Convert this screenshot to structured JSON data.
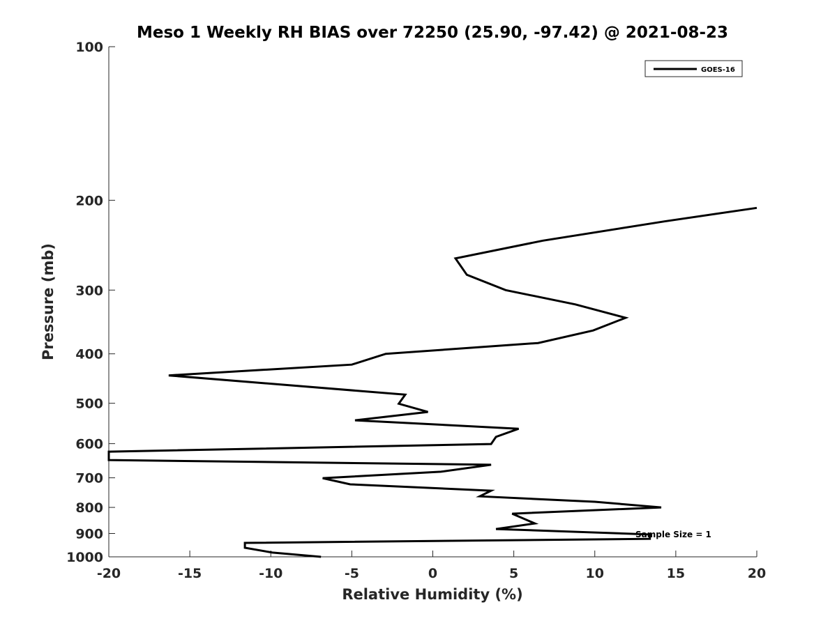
{
  "chart_data": {
    "type": "line",
    "title": "Meso 1 Weekly RH BIAS over 72250 (25.90, -97.42) @ 2021-08-23",
    "xlabel": "Relative Humidity (%)",
    "ylabel": "Pressure (mb)",
    "xlim": [
      -20,
      20
    ],
    "ylim": [
      100,
      1000
    ],
    "yscale": "log",
    "yreversed": true,
    "grid": false,
    "x_ticks": [
      -20,
      -15,
      -10,
      -5,
      0,
      5,
      10,
      15,
      20
    ],
    "x_tick_labels": [
      "-20",
      "-15",
      "-10",
      "-5",
      "0",
      "5",
      "10",
      "15",
      "20"
    ],
    "y_ticks": [
      100,
      200,
      300,
      400,
      500,
      600,
      700,
      800,
      900,
      1000
    ],
    "y_tick_labels": [
      "100",
      "200",
      "300",
      "400",
      "500",
      "600",
      "700",
      "800",
      "900",
      "1000"
    ],
    "legend": {
      "placement": "top-right",
      "entries": [
        "GOES-16"
      ]
    },
    "annotation": "Sample Size = 1",
    "series": [
      {
        "name": "GOES-16",
        "color": "#000000",
        "points": [
          [
            20.0,
            207
          ],
          [
            14.3,
            220
          ],
          [
            6.8,
            240
          ],
          [
            1.4,
            260
          ],
          [
            2.1,
            280
          ],
          [
            4.5,
            300
          ],
          [
            8.8,
            320
          ],
          [
            11.9,
            340
          ],
          [
            9.9,
            360
          ],
          [
            6.5,
            381
          ],
          [
            -2.9,
            400
          ],
          [
            -5.0,
            420
          ],
          [
            -16.3,
            441
          ],
          [
            -1.7,
            481
          ],
          [
            -2.1,
            501
          ],
          [
            -0.3,
            520
          ],
          [
            -4.8,
            540
          ],
          [
            5.3,
            561
          ],
          [
            3.9,
            582
          ],
          [
            3.6,
            601
          ],
          [
            -20.0,
            622
          ],
          [
            -20.0,
            646
          ],
          [
            3.6,
            660
          ],
          [
            0.5,
            681
          ],
          [
            -6.8,
            701
          ],
          [
            -5.1,
            721
          ],
          [
            3.6,
            742
          ],
          [
            2.9,
            761
          ],
          [
            10.0,
            780
          ],
          [
            14.1,
            800
          ],
          [
            4.9,
            823
          ],
          [
            6.3,
            860
          ],
          [
            3.9,
            882
          ],
          [
            13.4,
            904
          ],
          [
            13.4,
            922
          ],
          [
            -11.6,
            939
          ],
          [
            -11.6,
            960
          ],
          [
            -9.9,
            981
          ],
          [
            -6.9,
            1000
          ]
        ]
      }
    ]
  }
}
